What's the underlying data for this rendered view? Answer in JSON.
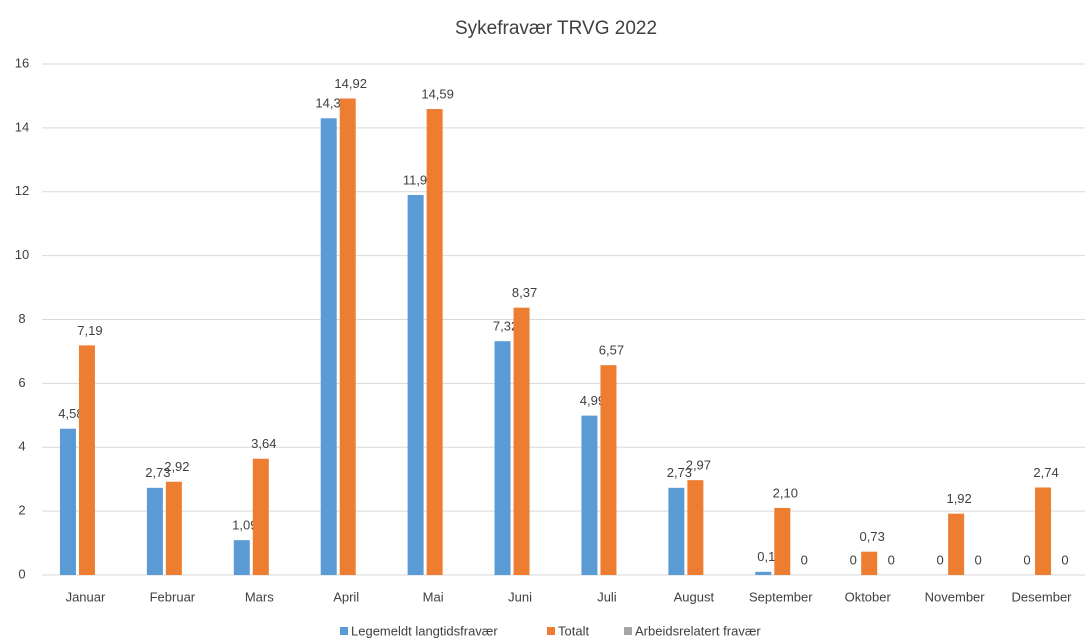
{
  "chart_data": {
    "type": "bar",
    "title": "Sykefravær TRVG 2022",
    "categories": [
      "Januar",
      "Februar",
      "Mars",
      "April",
      "Mai",
      "Juni",
      "Juli",
      "August",
      "September",
      "Oktober",
      "November",
      "Desember"
    ],
    "series": [
      {
        "name": "Legemeldt langtidsfravær",
        "color": "#5b9bd5",
        "values": [
          4.58,
          2.73,
          1.09,
          14.3,
          11.9,
          7.32,
          4.99,
          2.73,
          0.1,
          0,
          0,
          0
        ],
        "value_labels": [
          "4,58",
          "2,73",
          "1,09",
          "14,30",
          "11,90",
          "7,32",
          "4,99",
          "2,73",
          "0,1",
          "0",
          "0",
          "0"
        ]
      },
      {
        "name": "Totalt",
        "color": "#ed7d31",
        "values": [
          7.19,
          2.92,
          3.64,
          14.92,
          14.59,
          8.37,
          6.57,
          2.97,
          2.1,
          0.73,
          1.92,
          2.74
        ],
        "value_labels": [
          "7,19",
          "2,92",
          "3,64",
          "14,92",
          "14,59",
          "8,37",
          "6,57",
          "2,97",
          "2,10",
          "0,73",
          "1,92",
          "2,74"
        ]
      },
      {
        "name": "Arbeidsrelatert fravær",
        "color": "#a5a5a5",
        "values": [
          null,
          null,
          null,
          null,
          null,
          null,
          null,
          null,
          0,
          0,
          0,
          0
        ],
        "value_labels": [
          null,
          null,
          null,
          null,
          null,
          null,
          null,
          null,
          "0",
          "0",
          "0",
          "0"
        ]
      }
    ],
    "ylim": [
      0,
      16
    ],
    "yticks": [
      0,
      2,
      4,
      6,
      8,
      10,
      12,
      14,
      16
    ],
    "grid": true,
    "legend": "bottom"
  }
}
